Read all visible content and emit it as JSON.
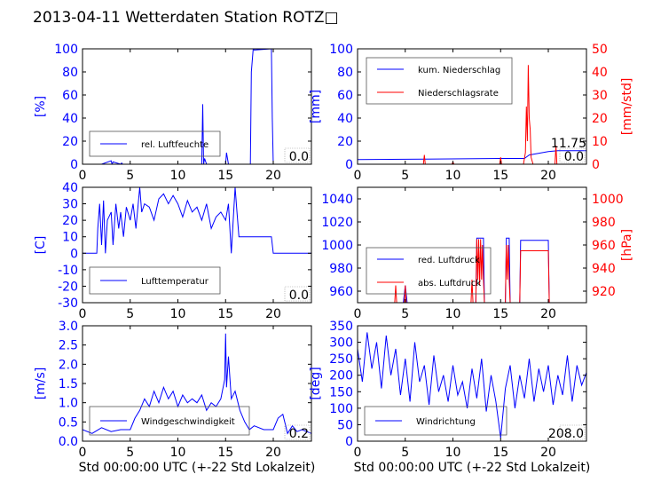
{
  "figure": {
    "title": "2013-04-11 Wetterdaten Station ROTZ□"
  },
  "colors": {
    "blue": "#0000ff",
    "red": "#ff0000",
    "lightblue": "#8080ff"
  },
  "chart_data": [
    {
      "type": "line",
      "ylabel": "[%]",
      "xlim": [
        0,
        24
      ],
      "ylim": [
        0,
        100
      ],
      "xticks": [
        0,
        5,
        10,
        15,
        20
      ],
      "yticks": [
        0,
        20,
        40,
        60,
        80,
        100
      ],
      "legend": [
        "rel. Luftfeuchte"
      ],
      "legend_loc": "lower-left",
      "current_value": "0.0",
      "series": [
        {
          "name": "rel. Luftfeuchte",
          "color": "#0000ff",
          "x": [
            0,
            2.0,
            3.0,
            3.1,
            3.2,
            4.0,
            4.1,
            4.2,
            8.0,
            12.5,
            12.6,
            12.7,
            12.8,
            13.0,
            15.0,
            15.1,
            15.3,
            17.6,
            17.7,
            17.9,
            18.0,
            19.8,
            19.9,
            20.0,
            24
          ],
          "y": [
            0,
            0,
            3,
            0,
            2,
            0,
            1,
            0,
            0,
            0,
            52,
            0,
            5,
            0,
            0,
            10,
            0,
            0,
            80,
            100,
            99,
            100,
            40,
            0,
            0
          ]
        }
      ]
    },
    {
      "type": "line",
      "ylabel": "[mm]",
      "y2label": "[mm/std]",
      "xlim": [
        0,
        24
      ],
      "ylim": [
        0,
        100
      ],
      "y2lim": [
        0,
        50
      ],
      "xticks": [
        0,
        5,
        10,
        15,
        20
      ],
      "yticks": [
        0,
        20,
        40,
        60,
        80,
        100
      ],
      "y2ticks": [
        0,
        10,
        20,
        30,
        40,
        50
      ],
      "legend": [
        "kum. Niederschlag",
        "Niederschlagsrate"
      ],
      "legend_loc": "upper-left",
      "current_value": "0.0",
      "current_value_2": "11.75",
      "series": [
        {
          "name": "kum. Niederschlag",
          "color": "#0000ff",
          "x": [
            0,
            7,
            15,
            17.5,
            18,
            20,
            21,
            24
          ],
          "y": [
            4,
            4.5,
            5,
            5,
            8,
            11,
            11.75,
            11.75
          ]
        },
        {
          "name": "Niederschlagsrate",
          "color": "#ff0000",
          "axis": "right",
          "x": [
            0,
            6.9,
            7.0,
            7.1,
            9.9,
            10.0,
            10.1,
            14.9,
            15.0,
            15.1,
            17.4,
            17.6,
            17.7,
            17.8,
            17.9,
            18.0,
            18.1,
            18.2,
            18.4,
            20.7,
            20.8,
            20.9,
            22,
            24
          ],
          "y": [
            0,
            0,
            4,
            0,
            0,
            1,
            0,
            0,
            3,
            0,
            0,
            5,
            25,
            10,
            43,
            20,
            15,
            3,
            0,
            0,
            8,
            0,
            0,
            0
          ]
        }
      ]
    },
    {
      "type": "line",
      "ylabel": "[C]",
      "xlim": [
        0,
        24
      ],
      "ylim": [
        -30,
        40
      ],
      "xticks": [
        0,
        5,
        10,
        15,
        20
      ],
      "yticks": [
        -30,
        -20,
        -10,
        0,
        10,
        20,
        30,
        40
      ],
      "legend": [
        "Lufttemperatur"
      ],
      "legend_loc": "lower-left",
      "current_value": "0.0",
      "series": [
        {
          "name": "Lufttemperatur",
          "color": "#0000ff",
          "x": [
            0,
            1.5,
            1.6,
            1.8,
            2.0,
            2.2,
            2.4,
            2.6,
            3.0,
            3.2,
            3.5,
            3.8,
            4.0,
            4.3,
            4.6,
            5.0,
            5.3,
            5.6,
            6.0,
            6.2,
            6.5,
            7.0,
            7.5,
            8.0,
            8.5,
            9.0,
            9.5,
            10.0,
            10.5,
            11.0,
            11.5,
            12.0,
            12.5,
            13.0,
            13.5,
            14.0,
            14.5,
            15.0,
            15.3,
            15.6,
            16.0,
            16.2,
            16.4,
            19.8,
            20.0,
            24
          ],
          "y": [
            0,
            0,
            15,
            30,
            5,
            32,
            0,
            20,
            25,
            5,
            30,
            15,
            25,
            10,
            28,
            20,
            30,
            15,
            40,
            25,
            30,
            28,
            20,
            33,
            36,
            30,
            35,
            30,
            22,
            32,
            25,
            28,
            20,
            30,
            15,
            22,
            25,
            20,
            30,
            0,
            40,
            25,
            10,
            10,
            0,
            0
          ]
        }
      ]
    },
    {
      "type": "line",
      "ylabel": "",
      "y2label": "[hPa]",
      "xlim": [
        0,
        24
      ],
      "ylim": [
        950,
        1050
      ],
      "y2lim": [
        910,
        1010
      ],
      "xticks": [
        0,
        5,
        10,
        15,
        20
      ],
      "yticks": [
        960,
        980,
        1000,
        1020,
        1040
      ],
      "y2ticks": [
        920,
        940,
        960,
        980,
        1000
      ],
      "legend": [
        "red. Luftdruck",
        "abs. Luftdruck"
      ],
      "legend_loc": "center-left",
      "series": [
        {
          "name": "red. Luftdruck",
          "color": "#0000ff",
          "x": [
            0,
            4.8,
            5.0,
            5.2,
            12.4,
            12.5,
            12.8,
            13.2,
            13.3,
            15.5,
            15.6,
            15.9,
            16.0,
            17.0,
            17.1,
            20.0,
            20.1,
            24
          ],
          "y": [
            950,
            950,
            965,
            950,
            950,
            1006,
            1006,
            1006,
            950,
            950,
            1006,
            1006,
            950,
            950,
            1004,
            1004,
            950,
            950
          ]
        },
        {
          "name": "abs. Luftdruck",
          "color": "#ff0000",
          "axis": "right",
          "x": [
            0,
            3.9,
            4.0,
            4.1,
            4.9,
            5.0,
            5.1,
            11.9,
            12.0,
            12.1,
            12.4,
            12.5,
            12.6,
            12.7,
            12.8,
            12.9,
            13.0,
            13.1,
            13.2,
            13.3,
            15.5,
            15.6,
            15.7,
            15.8,
            15.9,
            16.0,
            17.0,
            17.1,
            20.0,
            20.1,
            24
          ],
          "y": [
            910,
            910,
            925,
            910,
            910,
            925,
            910,
            910,
            930,
            910,
            910,
            965,
            930,
            965,
            925,
            965,
            930,
            960,
            930,
            910,
            910,
            960,
            930,
            960,
            930,
            910,
            910,
            955,
            955,
            910,
            910
          ]
        }
      ]
    },
    {
      "type": "line",
      "ylabel": "[m/s]",
      "xlabel": "Std 00:00:00 UTC (+-22 Std Lokalzeit)",
      "xlim": [
        0,
        24
      ],
      "ylim": [
        0,
        3
      ],
      "xticks": [
        0,
        5,
        10,
        15,
        20
      ],
      "yticks": [
        0,
        0.5,
        1.0,
        1.5,
        2.0,
        2.5,
        3.0
      ],
      "legend": [
        "Windgeschwindigkeit"
      ],
      "legend_loc": "lower-left",
      "current_value": "0.2",
      "series": [
        {
          "name": "Windgeschwindigkeit",
          "color": "#0000ff",
          "x": [
            0,
            1,
            2,
            3,
            4,
            5,
            5.5,
            6,
            6.5,
            7,
            7.5,
            8,
            8.5,
            9,
            9.5,
            10,
            10.5,
            11,
            11.5,
            12,
            12.5,
            13,
            13.5,
            14,
            14.5,
            14.9,
            15.0,
            15.1,
            15.3,
            15.6,
            16,
            16.5,
            17,
            17.5,
            18,
            19,
            20,
            20.5,
            21,
            21.5,
            22,
            22.5,
            23,
            24
          ],
          "y": [
            0.3,
            0.2,
            0.35,
            0.25,
            0.3,
            0.3,
            0.6,
            0.8,
            1.1,
            0.9,
            1.3,
            1.0,
            1.4,
            1.1,
            1.3,
            0.9,
            1.2,
            1.0,
            1.1,
            1.0,
            1.2,
            0.8,
            1.0,
            0.9,
            1.1,
            1.6,
            2.8,
            1.4,
            2.2,
            1.1,
            1.3,
            0.8,
            0.5,
            0.3,
            0.4,
            0.3,
            0.3,
            0.6,
            0.7,
            0.2,
            0.4,
            0.25,
            0.3,
            0.2
          ]
        }
      ]
    },
    {
      "type": "line",
      "ylabel": "[deg]",
      "xlabel": "Std 00:00:00 UTC (+-22 Std Lokalzeit)",
      "xlim": [
        0,
        24
      ],
      "ylim": [
        0,
        350
      ],
      "xticks": [
        0,
        5,
        10,
        15,
        20
      ],
      "yticks": [
        0,
        50,
        100,
        150,
        200,
        250,
        300,
        350
      ],
      "legend": [
        "Windrichtung"
      ],
      "legend_loc": "lower-left",
      "current_value": "208.0",
      "series": [
        {
          "name": "Windrichtung",
          "color": "#0000ff",
          "x": [
            0,
            0.5,
            1,
            1.5,
            2,
            2.5,
            3,
            3.5,
            4,
            4.5,
            5,
            5.5,
            6,
            6.5,
            7,
            7.5,
            8,
            8.5,
            9,
            9.5,
            10,
            10.5,
            11,
            11.5,
            12,
            12.5,
            13,
            13.5,
            14,
            14.5,
            15,
            15.5,
            16,
            16.5,
            17,
            17.5,
            18,
            18.5,
            19,
            19.5,
            20,
            20.5,
            21,
            21.5,
            22,
            22.5,
            23,
            23.5,
            24
          ],
          "y": [
            280,
            180,
            330,
            220,
            300,
            160,
            320,
            200,
            280,
            140,
            250,
            120,
            300,
            180,
            230,
            110,
            260,
            150,
            200,
            120,
            230,
            140,
            180,
            100,
            220,
            130,
            250,
            90,
            200,
            120,
            10,
            160,
            230,
            100,
            200,
            130,
            250,
            120,
            220,
            150,
            230,
            110,
            200,
            140,
            260,
            120,
            230,
            170,
            208
          ]
        }
      ]
    }
  ]
}
